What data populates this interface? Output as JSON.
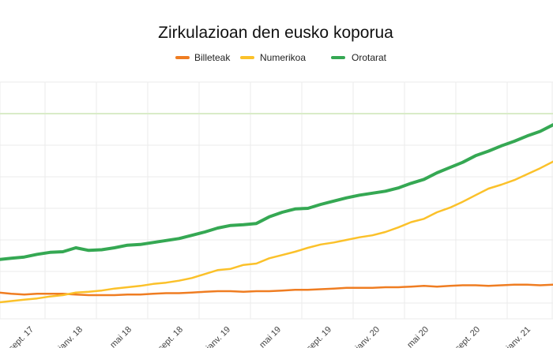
{
  "chart_data": {
    "type": "line",
    "title": "Zirkulazioan den eusko koporua",
    "xlabel": "",
    "ylabel": "",
    "x_tick_labels": [
      "sept. 17",
      "janv. 18",
      "mai 18",
      "sept. 18",
      "janv. 19",
      "mai 19",
      "sept. 19",
      "janv. 20",
      "mai 20",
      "sept. 20",
      "janv. 21"
    ],
    "grid": true,
    "legend_position": "top",
    "colors": {
      "Billeteak": "#ef7d22",
      "Numerikoa": "#fbc12a",
      "Orotarat": "#35a853",
      "grid": "#ebebeb",
      "highlight_gridline": "#d9ecc8",
      "text": "#111111"
    },
    "series": [
      {
        "name": "Billeteak",
        "values": [
          [
            0,
            60
          ],
          [
            1,
            58
          ],
          [
            2,
            57
          ],
          [
            3,
            58
          ],
          [
            4,
            58
          ],
          [
            5,
            58
          ],
          [
            6,
            57
          ],
          [
            7,
            56
          ],
          [
            8,
            56
          ],
          [
            9,
            56
          ],
          [
            10,
            57
          ],
          [
            11,
            57
          ],
          [
            12,
            58
          ],
          [
            13,
            59
          ],
          [
            14,
            59
          ],
          [
            15,
            60
          ],
          [
            16,
            61
          ],
          [
            17,
            62
          ],
          [
            18,
            62
          ],
          [
            19,
            61
          ],
          [
            20,
            62
          ],
          [
            21,
            62
          ],
          [
            22,
            63
          ],
          [
            23,
            64
          ],
          [
            24,
            64
          ],
          [
            25,
            65
          ],
          [
            26,
            66
          ],
          [
            27,
            67
          ],
          [
            28,
            67
          ],
          [
            29,
            67
          ],
          [
            30,
            68
          ],
          [
            31,
            68
          ],
          [
            32,
            69
          ],
          [
            33,
            70
          ],
          [
            34,
            69
          ],
          [
            35,
            70
          ],
          [
            36,
            71
          ],
          [
            37,
            71
          ],
          [
            38,
            70
          ],
          [
            39,
            71
          ],
          [
            40,
            72
          ],
          [
            41,
            72
          ],
          [
            42,
            71
          ],
          [
            43,
            72
          ]
        ]
      },
      {
        "name": "Numerikoa",
        "values": [
          [
            0,
            45
          ],
          [
            1,
            47
          ],
          [
            2,
            49
          ],
          [
            3,
            51
          ],
          [
            4,
            54
          ],
          [
            5,
            56
          ],
          [
            6,
            60
          ],
          [
            7,
            61
          ],
          [
            8,
            63
          ],
          [
            9,
            66
          ],
          [
            10,
            68
          ],
          [
            11,
            70
          ],
          [
            12,
            73
          ],
          [
            13,
            75
          ],
          [
            14,
            78
          ],
          [
            15,
            82
          ],
          [
            16,
            88
          ],
          [
            17,
            94
          ],
          [
            18,
            96
          ],
          [
            19,
            102
          ],
          [
            20,
            104
          ],
          [
            21,
            112
          ],
          [
            22,
            117
          ],
          [
            23,
            122
          ],
          [
            24,
            128
          ],
          [
            25,
            133
          ],
          [
            26,
            136
          ],
          [
            27,
            140
          ],
          [
            28,
            144
          ],
          [
            29,
            147
          ],
          [
            30,
            152
          ],
          [
            31,
            159
          ],
          [
            32,
            167
          ],
          [
            33,
            172
          ],
          [
            34,
            182
          ],
          [
            35,
            189
          ],
          [
            36,
            198
          ],
          [
            37,
            208
          ],
          [
            38,
            218
          ],
          [
            39,
            224
          ],
          [
            40,
            231
          ],
          [
            41,
            240
          ],
          [
            42,
            249
          ],
          [
            43,
            259
          ]
        ]
      },
      {
        "name": "Orotarat",
        "values": [
          [
            0,
            110
          ],
          [
            1,
            112
          ],
          [
            2,
            114
          ],
          [
            3,
            118
          ],
          [
            4,
            121
          ],
          [
            5,
            122
          ],
          [
            6,
            128
          ],
          [
            7,
            124
          ],
          [
            8,
            125
          ],
          [
            9,
            128
          ],
          [
            10,
            132
          ],
          [
            11,
            133
          ],
          [
            12,
            136
          ],
          [
            13,
            139
          ],
          [
            14,
            142
          ],
          [
            15,
            147
          ],
          [
            16,
            152
          ],
          [
            17,
            158
          ],
          [
            18,
            162
          ],
          [
            19,
            163
          ],
          [
            20,
            165
          ],
          [
            21,
            175
          ],
          [
            22,
            182
          ],
          [
            23,
            187
          ],
          [
            24,
            188
          ],
          [
            25,
            194
          ],
          [
            26,
            199
          ],
          [
            27,
            204
          ],
          [
            28,
            208
          ],
          [
            29,
            211
          ],
          [
            30,
            214
          ],
          [
            31,
            219
          ],
          [
            32,
            226
          ],
          [
            33,
            232
          ],
          [
            34,
            242
          ],
          [
            35,
            250
          ],
          [
            36,
            258
          ],
          [
            37,
            268
          ],
          [
            38,
            275
          ],
          [
            39,
            283
          ],
          [
            40,
            290
          ],
          [
            41,
            298
          ],
          [
            42,
            305
          ],
          [
            43,
            315
          ]
        ]
      }
    ],
    "ylim": [
      20,
      380
    ]
  }
}
